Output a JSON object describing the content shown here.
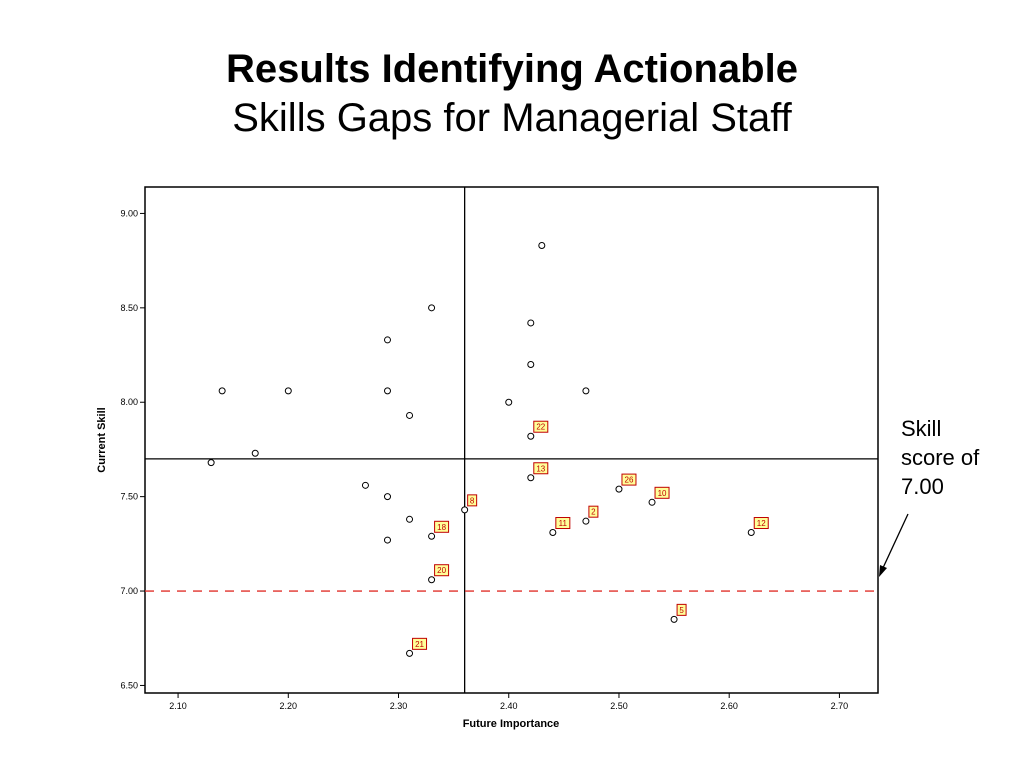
{
  "title_line1": "Results Identifying Actionable",
  "title_line2": "Skills Gaps for Managerial Staff",
  "annotation": {
    "lines": [
      "Skill",
      "score of",
      "7.00"
    ]
  },
  "chart_data": {
    "type": "scatter",
    "xlabel": "Future Importance",
    "ylabel": "Current Skill",
    "xlim": [
      2.07,
      2.735
    ],
    "ylim": [
      6.46,
      9.14
    ],
    "x_ticks": [
      "2.10",
      "2.20",
      "2.30",
      "2.40",
      "2.50",
      "2.60",
      "2.70"
    ],
    "y_ticks": [
      "6.50",
      "7.00",
      "7.50",
      "8.00",
      "8.50",
      "9.00"
    ],
    "reference_lines": {
      "vertical_x": 2.36,
      "horizontal_y": 7.7,
      "dashed_y": 7.0,
      "dashed_color": "#e0302a"
    },
    "label_box_color": "#ffff99",
    "label_border_color": "#c00000",
    "points": [
      {
        "x": 2.43,
        "y": 8.83,
        "label": ""
      },
      {
        "x": 2.33,
        "y": 8.5,
        "label": ""
      },
      {
        "x": 2.42,
        "y": 8.42,
        "label": ""
      },
      {
        "x": 2.29,
        "y": 8.33,
        "label": ""
      },
      {
        "x": 2.42,
        "y": 8.2,
        "label": ""
      },
      {
        "x": 2.14,
        "y": 8.06,
        "label": ""
      },
      {
        "x": 2.2,
        "y": 8.06,
        "label": ""
      },
      {
        "x": 2.29,
        "y": 8.06,
        "label": ""
      },
      {
        "x": 2.47,
        "y": 8.06,
        "label": ""
      },
      {
        "x": 2.4,
        "y": 8.0,
        "label": ""
      },
      {
        "x": 2.31,
        "y": 7.93,
        "label": ""
      },
      {
        "x": 2.42,
        "y": 7.82,
        "label": "22"
      },
      {
        "x": 2.17,
        "y": 7.73,
        "label": ""
      },
      {
        "x": 2.13,
        "y": 7.68,
        "label": ""
      },
      {
        "x": 2.42,
        "y": 7.6,
        "label": "13"
      },
      {
        "x": 2.27,
        "y": 7.56,
        "label": ""
      },
      {
        "x": 2.5,
        "y": 7.54,
        "label": "26"
      },
      {
        "x": 2.29,
        "y": 7.5,
        "label": ""
      },
      {
        "x": 2.53,
        "y": 7.47,
        "label": "10"
      },
      {
        "x": 2.36,
        "y": 7.43,
        "label": "8"
      },
      {
        "x": 2.31,
        "y": 7.38,
        "label": ""
      },
      {
        "x": 2.47,
        "y": 7.37,
        "label": "2"
      },
      {
        "x": 2.44,
        "y": 7.31,
        "label": "11"
      },
      {
        "x": 2.62,
        "y": 7.31,
        "label": "12"
      },
      {
        "x": 2.33,
        "y": 7.29,
        "label": "18"
      },
      {
        "x": 2.29,
        "y": 7.27,
        "label": ""
      },
      {
        "x": 2.33,
        "y": 7.06,
        "label": "20"
      },
      {
        "x": 2.55,
        "y": 6.85,
        "label": "5"
      },
      {
        "x": 2.31,
        "y": 6.67,
        "label": "21"
      }
    ]
  }
}
